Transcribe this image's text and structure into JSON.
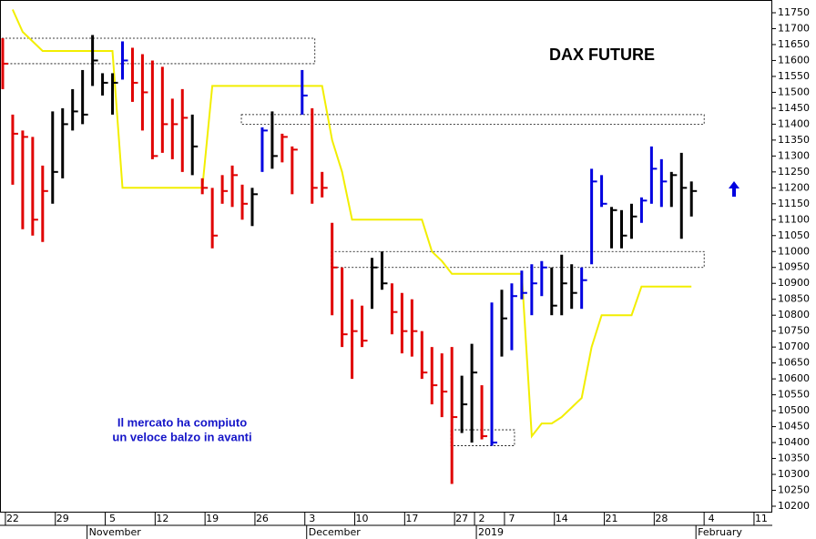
{
  "chart_data": {
    "type": "ohlc",
    "title": "DAX FUTURE",
    "annotation": [
      "Il mercato ha compiuto",
      "un veloce balzo in avanti"
    ],
    "categories": [
      null,
      "22",
      null,
      null,
      null,
      null,
      "29",
      null,
      null,
      null,
      null,
      "5",
      null,
      null,
      null,
      null,
      "12",
      null,
      null,
      null,
      null,
      "19",
      null,
      null,
      null,
      null,
      "26",
      null,
      null,
      null,
      null,
      "3",
      null,
      null,
      null,
      null,
      "10",
      null,
      null,
      null,
      null,
      "17",
      null,
      null,
      null,
      null,
      "27",
      null,
      "2",
      null,
      null,
      "7",
      null,
      null,
      null,
      null,
      "14",
      null,
      null,
      null,
      null,
      "21",
      null,
      null,
      null,
      null,
      "28",
      null,
      null,
      null,
      null,
      "4",
      null,
      null,
      null,
      null,
      "11"
    ],
    "months": [
      null,
      null,
      null,
      null,
      null,
      null,
      null,
      null,
      null,
      "November",
      null,
      null,
      null,
      null,
      null,
      null,
      null,
      null,
      null,
      null,
      null,
      null,
      null,
      null,
      null,
      null,
      null,
      null,
      null,
      null,
      null,
      "December",
      null,
      null,
      null,
      null,
      null,
      null,
      null,
      null,
      null,
      null,
      null,
      null,
      null,
      null,
      null,
      null,
      "2019",
      null,
      null,
      null,
      null,
      null,
      null,
      null,
      null,
      null,
      null,
      null,
      null,
      null,
      null,
      null,
      null,
      null,
      null,
      null,
      null,
      null,
      "February",
      null,
      null,
      null,
      null,
      null,
      null
    ],
    "high": [
      11670,
      11430,
      11380,
      11360,
      11270,
      11440,
      11450,
      11510,
      11570,
      11680,
      11560,
      11560,
      11660,
      11640,
      11620,
      11600,
      11580,
      11480,
      11510,
      11430,
      11230,
      11200,
      11240,
      11270,
      11210,
      11200,
      11390,
      11440,
      11370,
      11330,
      11570,
      11450,
      11250,
      11090,
      10950,
      10850,
      10830,
      10980,
      11000,
      10900,
      10870,
      10850,
      10750,
      10700,
      10680,
      10700,
      10610,
      10710,
      10580,
      10840,
      10880,
      10900,
      10940,
      10960,
      10970,
      10950,
      10990,
      10960,
      10950,
      11260,
      11240,
      11140,
      11130,
      11150,
      11170,
      11330,
      11290,
      11250,
      11310,
      11220,
      null,
      null,
      null,
      null,
      null,
      null,
      null
    ],
    "low": [
      11510,
      11210,
      11070,
      11050,
      11030,
      11150,
      11230,
      11380,
      11400,
      11520,
      11490,
      11430,
      11540,
      11470,
      11380,
      11290,
      11310,
      11290,
      11250,
      11240,
      11180,
      11010,
      11150,
      11140,
      11100,
      11080,
      11250,
      11260,
      11280,
      11180,
      11430,
      11150,
      11170,
      10800,
      10700,
      10600,
      10700,
      10820,
      10880,
      10740,
      10680,
      10670,
      10600,
      10520,
      10480,
      10270,
      10430,
      10400,
      10410,
      10390,
      10670,
      10690,
      10850,
      10800,
      10860,
      10800,
      10800,
      10820,
      10820,
      10960,
      11140,
      11010,
      11010,
      11040,
      11090,
      11150,
      11140,
      11140,
      11040,
      11110,
      null,
      null,
      null,
      null,
      null,
      null,
      null
    ],
    "close": [
      11590,
      11370,
      11360,
      11100,
      11190,
      11250,
      11400,
      11440,
      11430,
      11600,
      11530,
      11530,
      11600,
      11530,
      11500,
      11300,
      11400,
      11400,
      11420,
      11330,
      11200,
      11050,
      11190,
      11240,
      11150,
      11180,
      11380,
      11300,
      11360,
      11320,
      11490,
      11200,
      11200,
      10950,
      10740,
      10750,
      10720,
      10950,
      10900,
      10810,
      10750,
      10750,
      10620,
      10580,
      10560,
      10480,
      10520,
      10620,
      10420,
      10400,
      10790,
      10860,
      10870,
      10900,
      10950,
      10830,
      10900,
      10870,
      10910,
      11220,
      11150,
      11130,
      11050,
      11110,
      11160,
      11260,
      11220,
      11240,
      11200,
      11190,
      null,
      null,
      null,
      null,
      null,
      null,
      null
    ],
    "colors": [
      "#e00000",
      "#e00000",
      "#e00000",
      "#e00000",
      "#e00000",
      "#000000",
      "#000000",
      "#000000",
      "#000000",
      "#000000",
      "#000000",
      "#000000",
      "#0000e0",
      "#e00000",
      "#e00000",
      "#e00000",
      "#e00000",
      "#e00000",
      "#e00000",
      "#000000",
      "#e00000",
      "#e00000",
      "#e00000",
      "#e00000",
      "#e00000",
      "#000000",
      "#0000e0",
      "#000000",
      "#e00000",
      "#e00000",
      "#0000e0",
      "#e00000",
      "#e00000",
      "#e00000",
      "#e00000",
      "#e00000",
      "#e00000",
      "#000000",
      "#000000",
      "#e00000",
      "#e00000",
      "#e00000",
      "#e00000",
      "#e00000",
      "#e00000",
      "#e00000",
      "#000000",
      "#000000",
      "#e00000",
      "#0000e0",
      "#000000",
      "#0000e0",
      "#0000e0",
      "#0000e0",
      "#0000e0",
      "#000000",
      "#000000",
      "#000000",
      "#0000e0",
      "#0000e0",
      "#0000e0",
      "#000000",
      "#000000",
      "#000000",
      "#0000e0",
      "#0000e0",
      "#0000e0",
      "#000000",
      "#000000",
      "#000000",
      null,
      null,
      null,
      null,
      null,
      null,
      null
    ],
    "stop_line": {
      "color": "#f2ee00",
      "values": [
        null,
        11760,
        11690,
        11660,
        11630,
        11630,
        11630,
        11630,
        11630,
        11630,
        11630,
        11630,
        11200,
        11200,
        11200,
        11200,
        11200,
        11200,
        11200,
        11200,
        11200,
        11520,
        11520,
        11520,
        11520,
        11520,
        11520,
        11520,
        11520,
        11520,
        11520,
        11520,
        11520,
        11350,
        11250,
        11100,
        11100,
        11100,
        11100,
        11100,
        11100,
        11100,
        11100,
        11000,
        10970,
        10930,
        10930,
        10930,
        10930,
        10930,
        10930,
        10930,
        10930,
        10420,
        10460,
        10460,
        10480,
        10510,
        10540,
        10700,
        10800,
        10800,
        10800,
        10800,
        10890,
        10890,
        10890,
        10890,
        10890,
        10890,
        null,
        null,
        null,
        null,
        null,
        null,
        null
      ]
    },
    "zones": [
      {
        "start": 0,
        "end": 31,
        "high": 11670,
        "low": 11590
      },
      {
        "start": 24,
        "end": 70,
        "high": 11430,
        "low": 11400
      },
      {
        "start": 33,
        "end": 70,
        "high": 11000,
        "low": 10950
      },
      {
        "start": 45,
        "end": 51,
        "high": 10440,
        "low": 10390
      }
    ],
    "ylim": [
      10180,
      11790
    ],
    "yticks": [
      10200,
      10250,
      10300,
      10350,
      10400,
      10450,
      10500,
      10550,
      10600,
      10650,
      10700,
      10750,
      10800,
      10850,
      10900,
      10950,
      11000,
      11050,
      11100,
      11150,
      11200,
      11250,
      11300,
      11350,
      11400,
      11450,
      11500,
      11550,
      11600,
      11650,
      11700,
      11750
    ]
  }
}
